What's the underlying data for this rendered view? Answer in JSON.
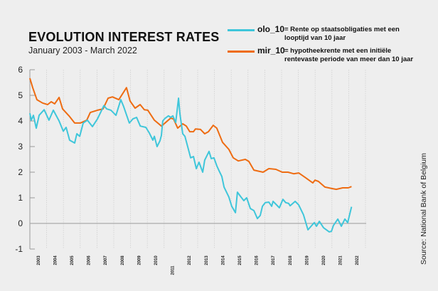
{
  "chart_data": {
    "type": "line",
    "title": "EVOLUTION INTEREST RATES",
    "subtitle": "January 2003 - March 2022",
    "source": "Source: National Bank of Belgium",
    "ylim": [
      -1,
      6
    ],
    "yticks": [
      "-1",
      "0",
      "1",
      "2",
      "3",
      "4",
      "5",
      "6"
    ],
    "xlim": [
      2003,
      2022.5
    ],
    "xticks": [
      "2003",
      "2004",
      "2005",
      "2006",
      "2007",
      "2008",
      "2009",
      "2010",
      "2011",
      "2012",
      "2013",
      "2014",
      "2015",
      "2016",
      "2017",
      "2018",
      "2019",
      "2020",
      "2021",
      "2022"
    ],
    "grid": "vertical dotted lines at year boundaries",
    "legend_position": "top-right",
    "series": [
      {
        "name": "olo_10",
        "description": "= Rente op staatsobligaties met een looptijd van 10 jaar",
        "color": "#3fc6da",
        "x": [
          2003.0,
          2003.08,
          2003.21,
          2003.38,
          2003.55,
          2003.85,
          2004.14,
          2004.4,
          2004.74,
          2004.99,
          2005.16,
          2005.37,
          2005.67,
          2005.8,
          2005.97,
          2006.18,
          2006.43,
          2006.73,
          2007.03,
          2007.41,
          2007.58,
          2007.83,
          2008.13,
          2008.42,
          2008.59,
          2008.93,
          2009.14,
          2009.36,
          2009.58,
          2009.91,
          2010.12,
          2010.33,
          2010.42,
          2010.58,
          2010.75,
          2010.84,
          2010.92,
          2011.05,
          2011.26,
          2011.39,
          2011.52,
          2011.69,
          2011.86,
          2011.94,
          2012.11,
          2012.24,
          2012.45,
          2012.58,
          2012.75,
          2012.92,
          2013.08,
          2013.3,
          2013.42,
          2013.68,
          2013.81,
          2013.97,
          2014.14,
          2014.27,
          2014.44,
          2014.57,
          2014.86,
          2015.03,
          2015.25,
          2015.37,
          2015.58,
          2015.75,
          2015.92,
          2016.14,
          2016.35,
          2016.56,
          2016.73,
          2016.86,
          2017.03,
          2017.24,
          2017.41,
          2017.49,
          2017.66,
          2017.87,
          2018.08,
          2018.25,
          2018.42,
          2018.51,
          2018.81,
          2019.02,
          2019.31,
          2019.57,
          2019.95,
          2020.08,
          2020.25,
          2020.5,
          2020.84,
          2020.97,
          2021.09,
          2021.35,
          2021.56,
          2021.77,
          2021.94,
          2022.17
        ],
        "y": [
          4.3,
          4.03,
          4.22,
          3.72,
          4.22,
          4.44,
          4.03,
          4.42,
          4.0,
          3.6,
          3.75,
          3.25,
          3.14,
          3.5,
          3.4,
          3.92,
          4.03,
          3.78,
          4.08,
          4.6,
          4.47,
          4.42,
          4.22,
          4.83,
          4.56,
          3.92,
          4.08,
          4.14,
          3.8,
          3.75,
          3.53,
          3.25,
          3.4,
          3.0,
          3.22,
          3.44,
          4.0,
          4.1,
          4.2,
          4.14,
          4.2,
          3.94,
          4.89,
          4.28,
          3.5,
          3.4,
          2.89,
          2.56,
          2.61,
          2.14,
          2.39,
          2.0,
          2.47,
          2.81,
          2.53,
          2.56,
          2.25,
          2.06,
          1.83,
          1.42,
          1.03,
          0.67,
          0.42,
          1.22,
          1.03,
          0.89,
          1.0,
          0.58,
          0.5,
          0.19,
          0.31,
          0.67,
          0.81,
          0.83,
          0.67,
          0.86,
          0.75,
          0.61,
          0.94,
          0.81,
          0.78,
          0.69,
          0.86,
          0.72,
          0.33,
          -0.25,
          0.03,
          -0.11,
          0.08,
          -0.17,
          -0.33,
          -0.31,
          -0.08,
          0.17,
          -0.11,
          0.17,
          0.03,
          0.65
        ]
      },
      {
        "name": "mir_10",
        "description": "= hypotheekrente met een initiële rentevaste periode van meer dan 10 jaar",
        "color": "#ee6c12",
        "x": [
          2003.0,
          2003.17,
          2003.42,
          2003.76,
          2004.06,
          2004.27,
          2004.48,
          2004.74,
          2004.95,
          2005.33,
          2005.67,
          2006.01,
          2006.39,
          2006.6,
          2007.03,
          2007.36,
          2007.66,
          2007.92,
          2008.3,
          2008.76,
          2008.97,
          2009.27,
          2009.57,
          2009.82,
          2010.03,
          2010.42,
          2010.84,
          2011.09,
          2011.39,
          2011.56,
          2011.81,
          2012.11,
          2012.32,
          2012.53,
          2012.75,
          2012.87,
          2013.17,
          2013.42,
          2013.64,
          2013.93,
          2014.14,
          2014.48,
          2014.86,
          2015.12,
          2015.42,
          2015.84,
          2016.05,
          2016.35,
          2016.9,
          2017.24,
          2017.66,
          2018.04,
          2018.38,
          2018.72,
          2019.02,
          2019.44,
          2019.86,
          2019.99,
          2020.2,
          2020.58,
          2021.01,
          2021.26,
          2021.64,
          2021.98,
          2022.17
        ],
        "y": [
          5.67,
          5.3,
          4.83,
          4.7,
          4.64,
          4.75,
          4.67,
          4.92,
          4.47,
          4.2,
          3.92,
          3.92,
          4.03,
          4.33,
          4.42,
          4.47,
          4.89,
          4.94,
          4.83,
          5.3,
          4.78,
          4.5,
          4.64,
          4.44,
          4.42,
          4.03,
          3.8,
          3.94,
          4.11,
          4.08,
          3.72,
          3.89,
          3.8,
          3.58,
          3.58,
          3.69,
          3.67,
          3.5,
          3.58,
          3.83,
          3.72,
          3.17,
          2.89,
          2.56,
          2.44,
          2.5,
          2.42,
          2.08,
          2.0,
          2.14,
          2.11,
          2.0,
          2.0,
          1.94,
          1.97,
          1.78,
          1.58,
          1.69,
          1.64,
          1.42,
          1.36,
          1.33,
          1.39,
          1.39,
          1.44
        ]
      }
    ]
  }
}
